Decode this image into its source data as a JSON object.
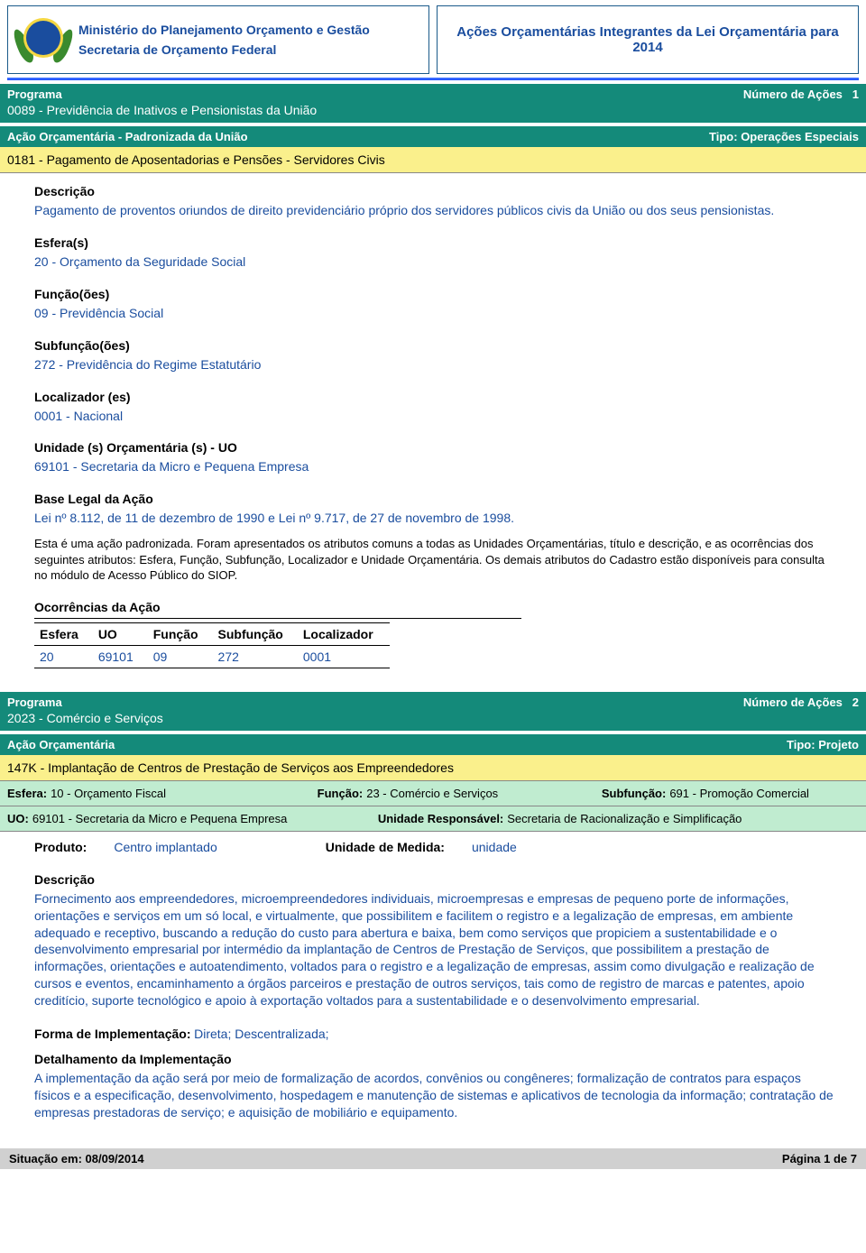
{
  "header": {
    "ministry": "Ministério do Planejamento Orçamento e Gestão",
    "secretariat": "Secretaria de Orçamento Federal",
    "right_title": "Ações Orçamentárias Integrantes da Lei Orçamentária para 2014"
  },
  "prog1": {
    "programa_label": "Programa",
    "num_acoes_label": "Número de Ações",
    "num_acoes_value": "1",
    "programa_title": "0089 - Previdência de Inativos e Pensionistas da União",
    "acao_label": "Ação Orçamentária - Padronizada da União",
    "tipo_label": "Tipo:",
    "tipo_value": "Operações Especiais",
    "yellow_title": "0181 - Pagamento de Aposentadorias e Pensões - Servidores Civis",
    "descricao_label": "Descrição",
    "descricao_text": "Pagamento de proventos oriundos de direito previdenciário próprio dos servidores públicos civis da União ou dos seus pensionistas.",
    "esferas_label": "Esfera(s)",
    "esferas_text": "20 - Orçamento da Seguridade Social",
    "funcoes_label": "Função(ões)",
    "funcoes_text": "09 - Previdência Social",
    "subfuncoes_label": "Subfunção(ões)",
    "subfuncoes_text": "272 - Previdência do Regime Estatutário",
    "localizador_label": "Localizador (es)",
    "localizador_text": "0001 - Nacional",
    "uo_label": "Unidade (s) Orçamentária (s) - UO",
    "uo_text": "69101 - Secretaria da Micro e Pequena Empresa",
    "base_legal_label": "Base Legal da Ação",
    "base_legal_text": "Lei nº 8.112, de 11 de dezembro de 1990 e Lei nº  9.717, de 27 de novembro de 1998.",
    "padronizada_note": "Esta é uma ação padronizada. Foram apresentados os atributos comuns a todas as Unidades Orçamentárias, título e descrição, e as ocorrências dos seguintes atributos: Esfera, Função, Subfunção, Localizador e Unidade Orçamentária. Os demais atributos do Cadastro estão disponíveis para consulta no módulo de Acesso Público do SIOP.",
    "ocorrencias_label": "Ocorrências da Ação",
    "table": {
      "headers": [
        "Esfera",
        "UO",
        "Função",
        "Subfunção",
        "Localizador"
      ],
      "row": [
        "20",
        "69101",
        "09",
        "272",
        "0001"
      ]
    }
  },
  "prog2": {
    "programa_label": "Programa",
    "num_acoes_label": "Número de Ações",
    "num_acoes_value": "2",
    "programa_title": "2023 - Comércio e Serviços",
    "acao_label": "Ação Orçamentária",
    "tipo_label": "Tipo:",
    "tipo_value": "Projeto",
    "yellow_title": "147K - Implantação de Centros de Prestação de Serviços aos Empreendedores",
    "green1": {
      "esfera_lbl": "Esfera:",
      "esfera_val": "10 - Orçamento Fiscal",
      "funcao_lbl": "Função:",
      "funcao_val": "23 - Comércio e Serviços",
      "subfuncao_lbl": "Subfunção:",
      "subfuncao_val": "691 - Promoção Comercial"
    },
    "green2": {
      "uo_lbl": "UO:",
      "uo_val": "69101 - Secretaria da Micro e Pequena Empresa",
      "ur_lbl": "Unidade Responsável:",
      "ur_val": "Secretaria de Racionalização e Simplificação"
    },
    "produto_lbl": "Produto:",
    "produto_val": "Centro implantado",
    "um_lbl": "Unidade de Medida:",
    "um_val": "unidade",
    "descricao_label": "Descrição",
    "descricao_text": "Fornecimento aos empreendedores, microempreendedores individuais, microempresas e empresas de pequeno porte de informações, orientações e serviços em um só local, e virtualmente, que possibilitem e facilitem o registro e a legalização de empresas, em ambiente adequado e receptivo, buscando a redução do custo para abertura e baixa, bem como serviços que propiciem a sustentabilidade e o desenvolvimento empresarial por intermédio da implantação de Centros de Prestação de Serviços, que possibilitem a prestação de informações, orientações e autoatendimento, voltados para o registro e a legalização de empresas, assim como divulgação e realização de cursos e eventos, encaminhamento a órgãos parceiros e prestação de outros serviços, tais como de registro de marcas e patentes, apoio creditício, suporte tecnológico e apoio à exportação voltados para a sustentabilidade e o desenvolvimento empresarial.",
    "forma_lbl": "Forma de Implementação:",
    "forma_val": "Direta; Descentralizada;",
    "detal_label": "Detalhamento da Implementação",
    "detal_text": "A implementação da ação será por meio de formalização de acordos, convênios ou congêneres; formalização de contratos para espaços físicos e a especificação, desenvolvimento, hospedagem e manutenção de sistemas e aplicativos de tecnologia da informação; contratação de empresas prestadoras de serviço; e aquisição de mobiliário e equipamento."
  },
  "footer": {
    "situacao": "Situação em: 08/09/2014",
    "page": "Página 1 de 7"
  }
}
